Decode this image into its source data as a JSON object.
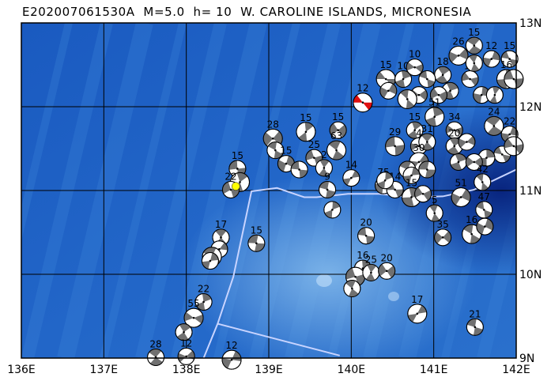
{
  "title": "E202007061530A  M=5.0  h= 10  W. CAROLINE ISLANDS, MICRONESIA",
  "map": {
    "lon_range": [
      136,
      142
    ],
    "lat_range": [
      9,
      13
    ],
    "lon_ticks": [
      "136E",
      "137E",
      "138E",
      "139E",
      "140E",
      "141E",
      "142E"
    ],
    "lat_ticks": [
      "13N",
      "12N",
      "11N",
      "10N",
      "9N"
    ],
    "grid": true,
    "colors": {
      "ocean": "#1c5fc4",
      "deep": "#0a2c8e",
      "shallow": "#6aa6e0",
      "compression": "#707070",
      "main_event": "#e01010",
      "epicenter": "#ffff00",
      "boundary": "#c8d4ff"
    }
  },
  "main_event": {
    "lon": 140.14,
    "lat": 12.05,
    "depth": "12"
  },
  "epicenter": {
    "lon": 138.6,
    "lat": 11.05
  },
  "plate_boundaries": [
    [
      [
        142.0,
        11.25
      ],
      [
        141.49,
        11.01
      ],
      [
        141.11,
        10.93
      ],
      [
        140.73,
        10.92
      ],
      [
        140.34,
        10.96
      ],
      [
        139.96,
        10.96
      ],
      [
        139.58,
        10.92
      ],
      [
        139.43,
        10.92
      ],
      [
        139.1,
        11.03
      ],
      [
        138.79,
        10.99
      ],
      [
        138.57,
        9.97
      ],
      [
        138.38,
        9.41
      ],
      [
        138.21,
        9.0
      ]
    ],
    [
      [
        138.38,
        9.41
      ],
      [
        139.86,
        9.03
      ]
    ]
  ],
  "events": [
    {
      "lon": 140.42,
      "lat": 12.33,
      "depth": "15"
    },
    {
      "lon": 140.63,
      "lat": 12.33,
      "depth": "10"
    },
    {
      "lon": 140.77,
      "lat": 12.47,
      "depth": "10"
    },
    {
      "lon": 141.11,
      "lat": 12.38,
      "depth": "18"
    },
    {
      "lon": 141.3,
      "lat": 12.61,
      "depth": "26"
    },
    {
      "lon": 141.49,
      "lat": 12.73,
      "depth": "15"
    },
    {
      "lon": 141.7,
      "lat": 12.57,
      "depth": "12"
    },
    {
      "lon": 141.92,
      "lat": 12.57,
      "depth": "15"
    },
    {
      "lon": 141.88,
      "lat": 12.33,
      "depth": "16"
    },
    {
      "lon": 141.44,
      "lat": 12.33,
      "depth": "12"
    },
    {
      "lon": 141.2,
      "lat": 12.19,
      "depth": ""
    },
    {
      "lon": 140.82,
      "lat": 12.14,
      "depth": ""
    },
    {
      "lon": 140.68,
      "lat": 12.09,
      "depth": ""
    },
    {
      "lon": 140.45,
      "lat": 12.19,
      "depth": ""
    },
    {
      "lon": 140.92,
      "lat": 12.33,
      "depth": ""
    },
    {
      "lon": 141.58,
      "lat": 12.14,
      "depth": ""
    },
    {
      "lon": 141.97,
      "lat": 12.33,
      "depth": ""
    },
    {
      "lon": 141.74,
      "lat": 12.14,
      "depth": ""
    },
    {
      "lon": 141.06,
      "lat": 12.14,
      "depth": ""
    },
    {
      "lon": 141.49,
      "lat": 12.52,
      "depth": ""
    },
    {
      "lon": 139.05,
      "lat": 11.62,
      "depth": "28"
    },
    {
      "lon": 139.08,
      "lat": 11.48,
      "depth": ""
    },
    {
      "lon": 139.21,
      "lat": 11.32,
      "depth": "15"
    },
    {
      "lon": 139.37,
      "lat": 11.25,
      "depth": ""
    },
    {
      "lon": 139.45,
      "lat": 11.7,
      "depth": "15"
    },
    {
      "lon": 139.55,
      "lat": 11.39,
      "depth": "25"
    },
    {
      "lon": 139.67,
      "lat": 11.27,
      "depth": "2"
    },
    {
      "lon": 139.84,
      "lat": 11.72,
      "depth": "15"
    },
    {
      "lon": 139.82,
      "lat": 11.48,
      "depth": "63"
    },
    {
      "lon": 140.0,
      "lat": 11.15,
      "depth": "14"
    },
    {
      "lon": 139.71,
      "lat": 11.01,
      "depth": "9"
    },
    {
      "lon": 139.77,
      "lat": 10.77,
      "depth": ""
    },
    {
      "lon": 140.53,
      "lat": 11.53,
      "depth": "29"
    },
    {
      "lon": 140.77,
      "lat": 11.72,
      "depth": "15"
    },
    {
      "lon": 140.82,
      "lat": 11.53,
      "depth": "4"
    },
    {
      "lon": 140.92,
      "lat": 11.58,
      "depth": "31"
    },
    {
      "lon": 140.82,
      "lat": 11.34,
      "depth": "30"
    },
    {
      "lon": 140.68,
      "lat": 11.25,
      "depth": ""
    },
    {
      "lon": 140.73,
      "lat": 11.18,
      "depth": ""
    },
    {
      "lon": 140.92,
      "lat": 11.25,
      "depth": ""
    },
    {
      "lon": 141.01,
      "lat": 11.88,
      "depth": "51"
    },
    {
      "lon": 141.25,
      "lat": 11.72,
      "depth": "34"
    },
    {
      "lon": 141.25,
      "lat": 11.53,
      "depth": "20"
    },
    {
      "lon": 141.4,
      "lat": 11.58,
      "depth": ""
    },
    {
      "lon": 141.73,
      "lat": 11.77,
      "depth": "24"
    },
    {
      "lon": 141.92,
      "lat": 11.67,
      "depth": "22"
    },
    {
      "lon": 141.83,
      "lat": 11.43,
      "depth": ""
    },
    {
      "lon": 141.64,
      "lat": 11.39,
      "depth": ""
    },
    {
      "lon": 141.97,
      "lat": 11.53,
      "depth": ""
    },
    {
      "lon": 141.3,
      "lat": 11.34,
      "depth": ""
    },
    {
      "lon": 141.49,
      "lat": 11.34,
      "depth": ""
    },
    {
      "lon": 141.59,
      "lat": 11.1,
      "depth": "42"
    },
    {
      "lon": 141.33,
      "lat": 10.92,
      "depth": "51"
    },
    {
      "lon": 141.61,
      "lat": 10.77,
      "depth": "47"
    },
    {
      "lon": 140.39,
      "lat": 11.06,
      "depth": "75"
    },
    {
      "lon": 140.53,
      "lat": 11.01,
      "depth": "14"
    },
    {
      "lon": 140.73,
      "lat": 10.92,
      "depth": "15"
    },
    {
      "lon": 140.87,
      "lat": 10.96,
      "depth": ""
    },
    {
      "lon": 141.01,
      "lat": 10.73,
      "depth": "5"
    },
    {
      "lon": 141.11,
      "lat": 10.44,
      "depth": "35"
    },
    {
      "lon": 141.46,
      "lat": 10.48,
      "depth": "16"
    },
    {
      "lon": 141.62,
      "lat": 10.57,
      "depth": ""
    },
    {
      "lon": 140.18,
      "lat": 10.46,
      "depth": "20"
    },
    {
      "lon": 140.14,
      "lat": 10.07,
      "depth": "16"
    },
    {
      "lon": 140.05,
      "lat": 9.97,
      "depth": ""
    },
    {
      "lon": 140.24,
      "lat": 10.02,
      "depth": "25"
    },
    {
      "lon": 140.43,
      "lat": 10.04,
      "depth": "20"
    },
    {
      "lon": 140.01,
      "lat": 9.83,
      "depth": ""
    },
    {
      "lon": 140.8,
      "lat": 9.53,
      "depth": "17"
    },
    {
      "lon": 141.5,
      "lat": 9.37,
      "depth": "21"
    },
    {
      "lon": 140.41,
      "lat": 11.12,
      "depth": ""
    },
    {
      "lon": 138.62,
      "lat": 11.26,
      "depth": "15"
    },
    {
      "lon": 138.65,
      "lat": 11.1,
      "depth": ""
    },
    {
      "lon": 138.54,
      "lat": 11.01,
      "depth": "22"
    },
    {
      "lon": 138.42,
      "lat": 10.44,
      "depth": "17"
    },
    {
      "lon": 138.4,
      "lat": 10.3,
      "depth": ""
    },
    {
      "lon": 138.31,
      "lat": 10.21,
      "depth": ""
    },
    {
      "lon": 138.29,
      "lat": 10.16,
      "depth": ""
    },
    {
      "lon": 138.85,
      "lat": 10.37,
      "depth": "15"
    },
    {
      "lon": 138.21,
      "lat": 9.67,
      "depth": "22"
    },
    {
      "lon": 138.09,
      "lat": 9.48,
      "depth": "55"
    },
    {
      "lon": 137.97,
      "lat": 9.31,
      "depth": ""
    },
    {
      "lon": 138.0,
      "lat": 9.02,
      "depth": "12"
    },
    {
      "lon": 137.63,
      "lat": 9.01,
      "depth": "28"
    },
    {
      "lon": 138.55,
      "lat": 8.98,
      "depth": "12"
    }
  ]
}
